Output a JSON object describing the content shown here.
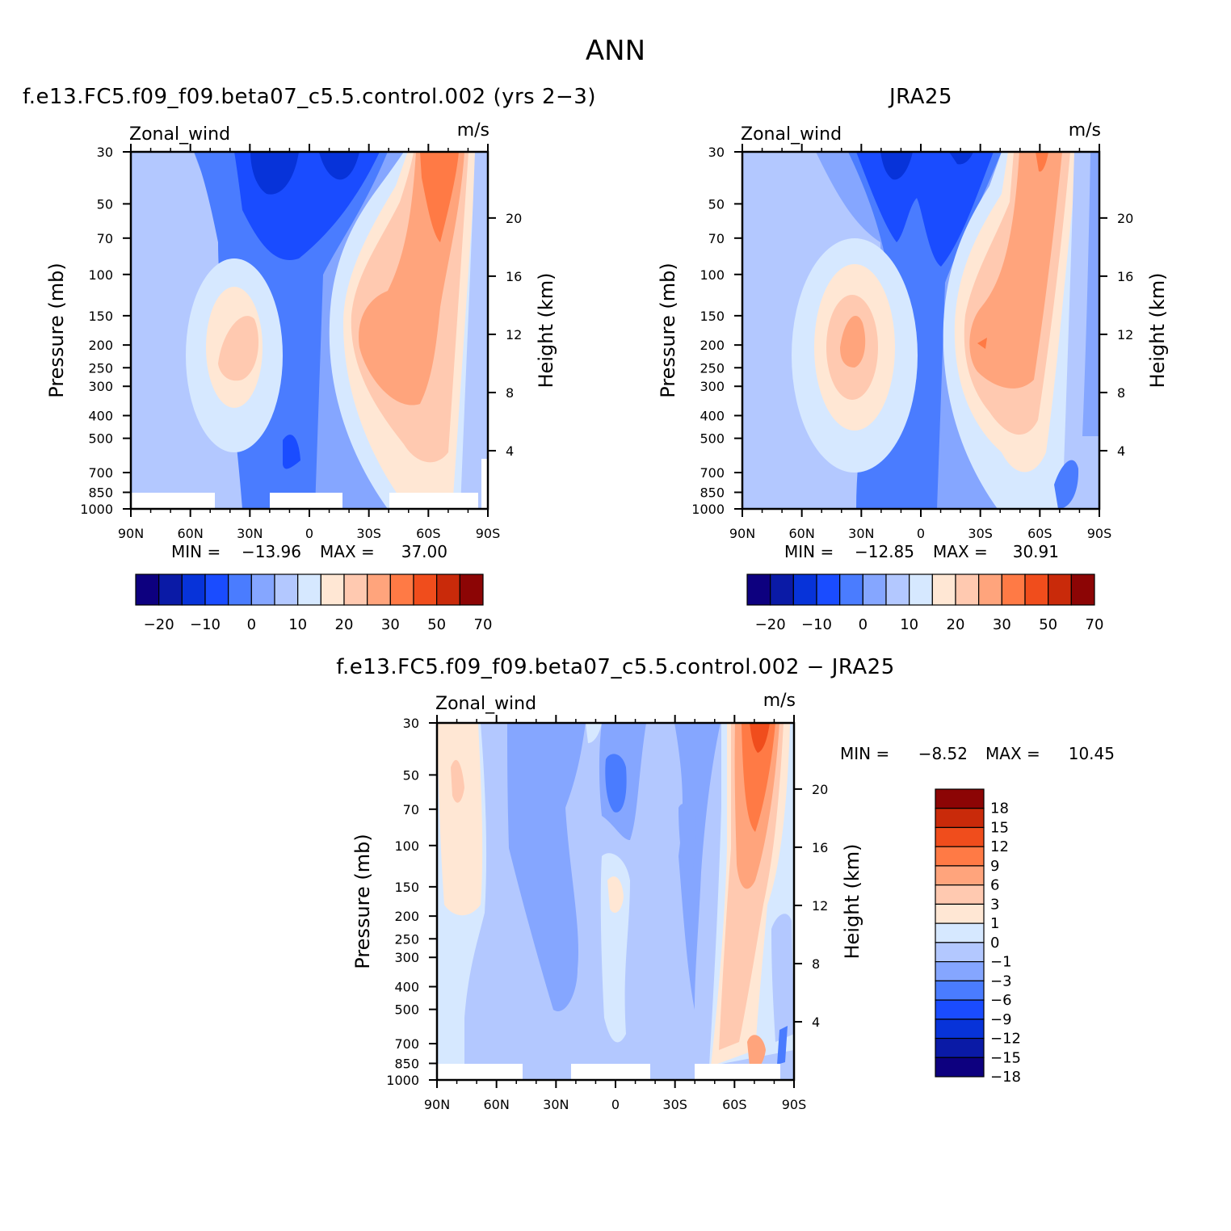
{
  "figure": {
    "title": "ANN",
    "panel_titles": {
      "model": "f.e13.FC5.f09_f09.beta07_c5.5.control.002 (yrs 2−3)",
      "obs": "JRA25",
      "diff": "f.e13.FC5.f09_f09.beta07_c5.5.control.002 − JRA25"
    }
  },
  "colors": {
    "abs_palette": [
      "#0d007f",
      "#0a1aa6",
      "#0733d9",
      "#1a4cff",
      "#4a7cff",
      "#85a6ff",
      "#b3c8ff",
      "#d6e8ff",
      "#ffe7d4",
      "#ffc9b0",
      "#ffa47c",
      "#ff7a45",
      "#f04d1c",
      "#c92a0a",
      "#8c0505"
    ],
    "diff_palette": [
      "#0d007f",
      "#0a1aa6",
      "#0733d9",
      "#1a4cff",
      "#4a7cff",
      "#85a6ff",
      "#b3c8ff",
      "#d6e8ff",
      "#ffe7d4",
      "#ffc9b0",
      "#ffa47c",
      "#ff7a45",
      "#f04d1c",
      "#c92a0a",
      "#8c0505"
    ],
    "contour_base": "#4a7cff"
  },
  "chart_data": [
    {
      "type": "heatmap",
      "panel": "model",
      "variable": "Zonal_wind",
      "units": "m/s",
      "ylabel": "Pressure (mb)",
      "ylabel_right": "Height (km)",
      "x_ticks": [
        "90N",
        "60N",
        "30N",
        "0",
        "30S",
        "60S",
        "90S"
      ],
      "y_ticks": [
        "30",
        "50",
        "70",
        "100",
        "150",
        "200",
        "250",
        "300",
        "400",
        "500",
        "700",
        "850",
        "1000"
      ],
      "height_ticks": [
        "20",
        "16",
        "12",
        "8",
        "4"
      ],
      "min_label": "MIN =",
      "max_label": "MAX =",
      "min": "−13.96",
      "max": "37.00",
      "features": [
        {
          "name": "northern jet",
          "lat": -40,
          "pressure_mb": 200,
          "value": 22
        },
        {
          "name": "southern jet",
          "lat": 40,
          "pressure_mb": 200,
          "value": 30
        },
        {
          "name": "southern stratospheric jet",
          "lat": 60,
          "pressure_mb": 30,
          "value": 37
        },
        {
          "name": "tropical easterlies",
          "lat": -10,
          "pressure_mb": 30,
          "value": -13.96
        }
      ]
    },
    {
      "type": "heatmap",
      "panel": "obs",
      "variable": "Zonal_wind",
      "units": "m/s",
      "ylabel": "Pressure (mb)",
      "ylabel_right": "Height (km)",
      "x_ticks": [
        "90N",
        "60N",
        "30N",
        "0",
        "30S",
        "60S",
        "90S"
      ],
      "y_ticks": [
        "30",
        "50",
        "70",
        "100",
        "150",
        "200",
        "250",
        "300",
        "400",
        "500",
        "700",
        "850",
        "1000"
      ],
      "height_ticks": [
        "20",
        "16",
        "12",
        "8",
        "4"
      ],
      "min_label": "MIN =",
      "max_label": "MAX =",
      "min": "−12.85",
      "max": "30.91",
      "features": [
        {
          "name": "northern jet",
          "lat": -38,
          "pressure_mb": 200,
          "value": 24
        },
        {
          "name": "southern jet",
          "lat": 35,
          "pressure_mb": 200,
          "value": 30.91
        },
        {
          "name": "southern stratospheric jet",
          "lat": 60,
          "pressure_mb": 30,
          "value": 30
        },
        {
          "name": "tropical easterlies",
          "lat": -15,
          "pressure_mb": 30,
          "value": -12.85
        }
      ]
    },
    {
      "type": "heatmap",
      "panel": "diff",
      "variable": "Zonal_wind",
      "units": "m/s",
      "ylabel": "Pressure (mb)",
      "ylabel_right": "Height (km)",
      "x_ticks": [
        "90N",
        "60N",
        "30N",
        "0",
        "30S",
        "60S",
        "90S"
      ],
      "y_ticks": [
        "30",
        "50",
        "70",
        "100",
        "150",
        "200",
        "250",
        "300",
        "400",
        "500",
        "700",
        "850",
        "1000"
      ],
      "height_ticks": [
        "20",
        "16",
        "12",
        "8",
        "4"
      ],
      "min_label": "MIN =",
      "max_label": "MAX =",
      "min": "−8.52",
      "max": "10.45",
      "features": [
        {
          "name": "southern high-latitude positive bias",
          "lat": 70,
          "pressure_mb": 30,
          "value": 10.45
        },
        {
          "name": "equatorial negative bias",
          "lat": 0,
          "pressure_mb": 50,
          "value": -8.52
        }
      ]
    }
  ],
  "colorbars": {
    "abs_labels": [
      "−20",
      "−10",
      "0",
      "10",
      "20",
      "30",
      "50",
      "70"
    ],
    "diff_labels": [
      "18",
      "15",
      "12",
      "9",
      "6",
      "3",
      "1",
      "0",
      "−1",
      "−3",
      "−6",
      "−9",
      "−12",
      "−15",
      "−18"
    ]
  }
}
